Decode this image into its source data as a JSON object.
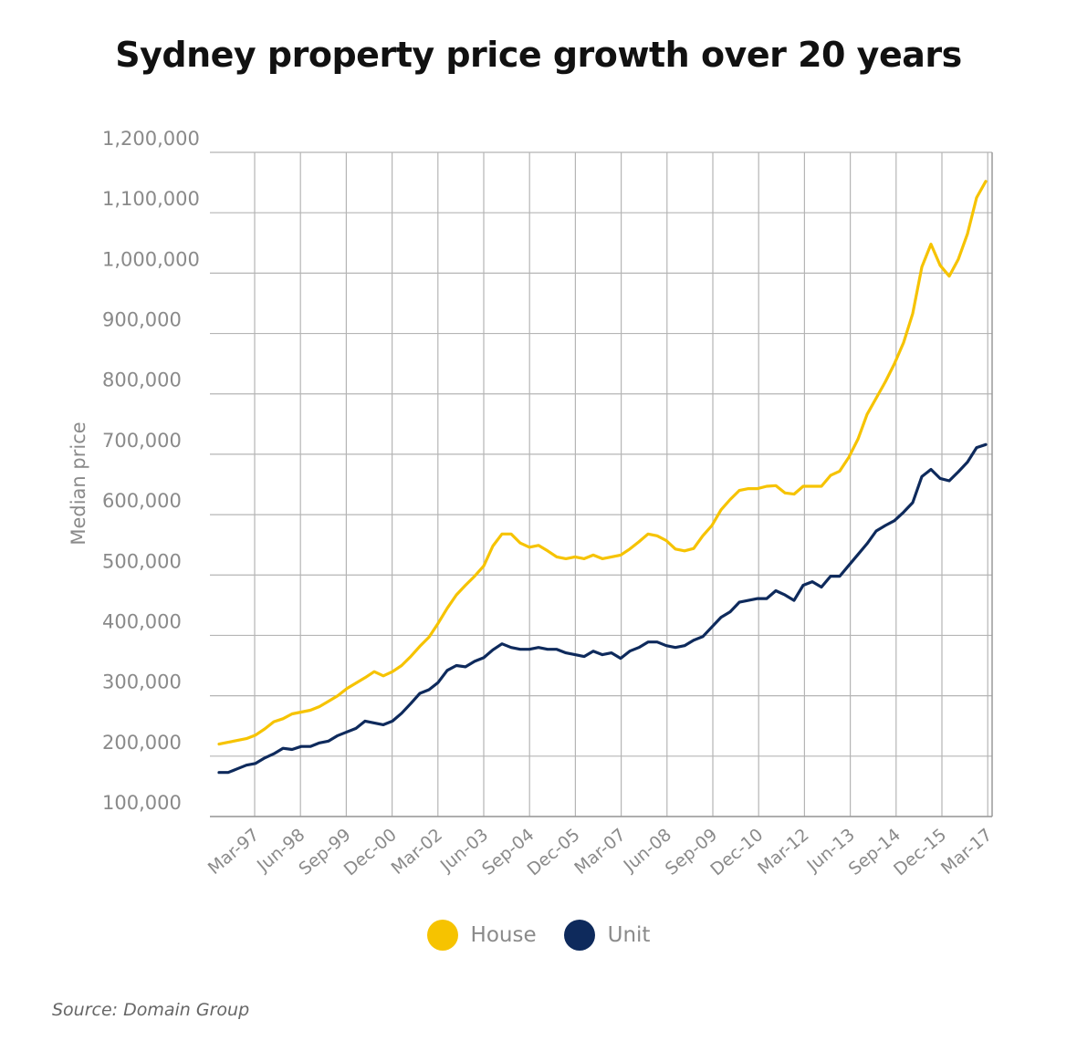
{
  "chart_data": {
    "type": "line",
    "title": "Sydney property price growth over 20 years",
    "ylabel": "Median price",
    "xlabel": "",
    "ylim": [
      100000,
      1200000
    ],
    "yticks": [
      100000,
      200000,
      300000,
      400000,
      500000,
      600000,
      700000,
      800000,
      900000,
      1000000,
      1100000,
      1200000
    ],
    "ytick_labels": [
      "100,000",
      "200,000",
      "300,000",
      "400,000",
      "500,000",
      "600,000",
      "700,000",
      "800,000",
      "900,000",
      "1,000,000",
      "1,100,000",
      "1,200,000"
    ],
    "x_tick_labels": [
      "Mar-97",
      "Jun-98",
      "Sep-99",
      "Dec-00",
      "Mar-02",
      "Jun-03",
      "Sep-04",
      "Dec-05",
      "Mar-07",
      "Jun-08",
      "Sep-09",
      "Dec-10",
      "Mar-12",
      "Jun-13",
      "Sep-14",
      "Dec-15",
      "Mar-17"
    ],
    "x": [
      "Jun-96",
      "Sep-96",
      "Dec-96",
      "Mar-97",
      "Jun-97",
      "Sep-97",
      "Dec-97",
      "Mar-98",
      "Jun-98",
      "Sep-98",
      "Dec-98",
      "Mar-99",
      "Jun-99",
      "Sep-99",
      "Dec-99",
      "Mar-00",
      "Jun-00",
      "Sep-00",
      "Dec-00",
      "Mar-01",
      "Jun-01",
      "Sep-01",
      "Dec-01",
      "Mar-02",
      "Jun-02",
      "Sep-02",
      "Dec-02",
      "Mar-03",
      "Jun-03",
      "Sep-03",
      "Dec-03",
      "Mar-04",
      "Jun-04",
      "Sep-04",
      "Dec-04",
      "Mar-05",
      "Jun-05",
      "Sep-05",
      "Dec-05",
      "Mar-06",
      "Jun-06",
      "Sep-06",
      "Dec-06",
      "Mar-07",
      "Jun-07",
      "Sep-07",
      "Dec-07",
      "Mar-08",
      "Jun-08",
      "Sep-08",
      "Dec-08",
      "Mar-09",
      "Jun-09",
      "Sep-09",
      "Dec-09",
      "Mar-10",
      "Jun-10",
      "Sep-10",
      "Dec-10",
      "Mar-11",
      "Jun-11",
      "Sep-11",
      "Dec-11",
      "Mar-12",
      "Jun-12",
      "Sep-12",
      "Dec-12",
      "Mar-13",
      "Jun-13",
      "Sep-13",
      "Dec-13",
      "Mar-14",
      "Jun-14",
      "Sep-14",
      "Dec-14",
      "Mar-15",
      "Jun-15",
      "Sep-15",
      "Dec-15",
      "Mar-16",
      "Jun-16",
      "Sep-16",
      "Dec-16",
      "Mar-17",
      "Jun-17"
    ],
    "series": [
      {
        "name": "House",
        "color": "#F6C300",
        "values": [
          220000,
          223000,
          226000,
          229000,
          235000,
          245000,
          257000,
          262000,
          270000,
          273000,
          276000,
          282000,
          291000,
          300000,
          312000,
          321000,
          330000,
          340000,
          333000,
          340000,
          350000,
          365000,
          382000,
          397000,
          420000,
          445000,
          467000,
          483000,
          498000,
          515000,
          548000,
          568000,
          568000,
          553000,
          546000,
          549000,
          540000,
          530000,
          527000,
          530000,
          527000,
          533000,
          527000,
          530000,
          533000,
          543000,
          555000,
          568000,
          565000,
          557000,
          543000,
          540000,
          544000,
          565000,
          582000,
          608000,
          625000,
          640000,
          643000,
          643000,
          647000,
          648000,
          636000,
          634000,
          647000,
          647000,
          647000,
          665000,
          672000,
          695000,
          725000,
          766000,
          793000,
          820000,
          850000,
          885000,
          933000,
          1010000,
          1048000,
          1013000,
          995000,
          1023000,
          1065000,
          1125000,
          1152000
        ]
      },
      {
        "name": "Unit",
        "color": "#0E2A5C",
        "values": [
          173000,
          173000,
          179000,
          185000,
          188000,
          197000,
          204000,
          213000,
          211000,
          216000,
          216000,
          222000,
          225000,
          234000,
          240000,
          246000,
          258000,
          255000,
          252000,
          258000,
          271000,
          287000,
          304000,
          310000,
          322000,
          342000,
          350000,
          348000,
          357000,
          363000,
          376000,
          386000,
          380000,
          377000,
          377000,
          380000,
          377000,
          377000,
          371000,
          368000,
          365000,
          374000,
          368000,
          371000,
          362000,
          374000,
          380000,
          389000,
          389000,
          383000,
          380000,
          383000,
          392000,
          398000,
          414000,
          430000,
          439000,
          455000,
          458000,
          461000,
          461000,
          474000,
          467000,
          458000,
          483000,
          489000,
          480000,
          498000,
          498000,
          516000,
          534000,
          552000,
          573000,
          582000,
          590000,
          604000,
          620000,
          663000,
          675000,
          660000,
          656000,
          671000,
          687000,
          711000,
          716000
        ]
      }
    ],
    "legend_position": "bottom-center",
    "grid": true
  },
  "source_text": "Source: Domain Group"
}
